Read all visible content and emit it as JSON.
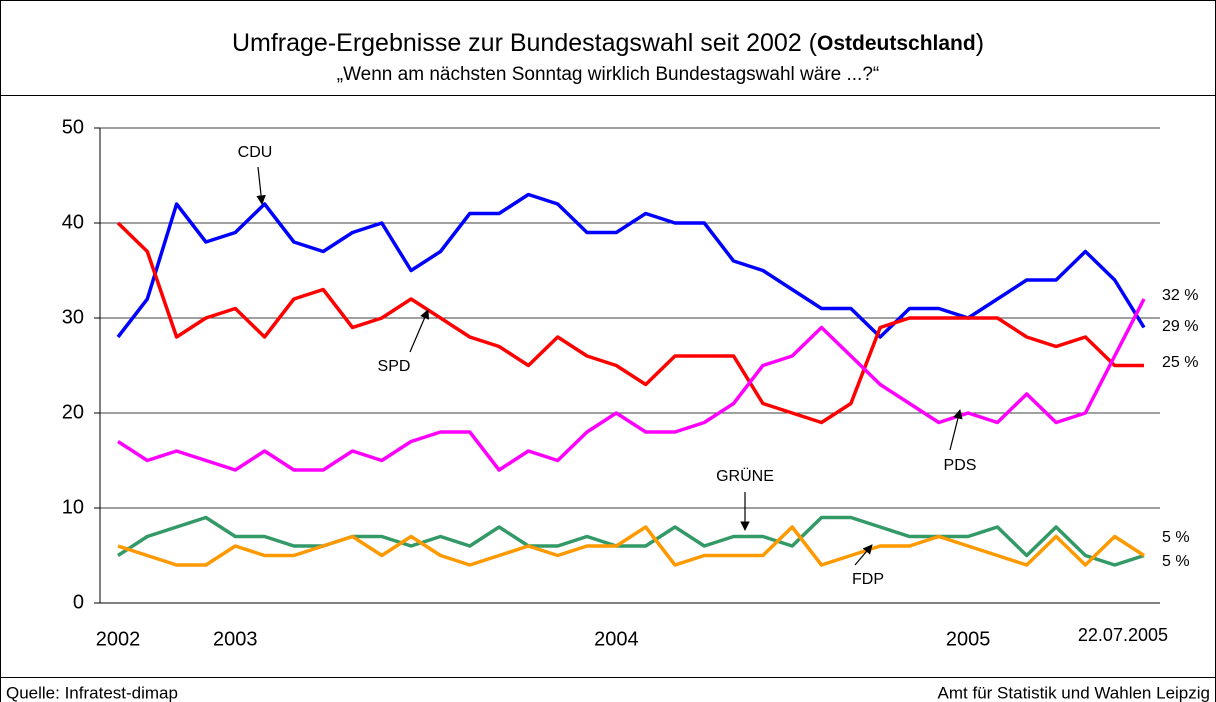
{
  "chart_data": {
    "type": "line",
    "title_parts": [
      "Umfrage-Ergebnisse zur Bundestagswahl seit 2002 (",
      "Ostdeutschland",
      ")"
    ],
    "subtitle": "„Wenn am nächsten Sonntag wirklich Bundestagswahl wäre ...?“",
    "source": "Quelle: Infratest-dimap",
    "credit": "Amt für Statistik und Wahlen Leipzig",
    "categories": [
      "2002",
      null,
      null,
      null,
      "2003",
      null,
      null,
      null,
      null,
      null,
      null,
      null,
      null,
      null,
      null,
      null,
      null,
      "2004",
      null,
      null,
      null,
      null,
      null,
      null,
      null,
      null,
      null,
      null,
      null,
      "2005",
      null,
      null,
      null,
      null,
      null,
      "22.07.2005"
    ],
    "ylim": [
      0,
      50
    ],
    "yticks": [
      0,
      10,
      20,
      30,
      40,
      50
    ],
    "grid": true,
    "series": [
      {
        "name": "CDU",
        "color": "#0000ff",
        "values": [
          28,
          32,
          42,
          38,
          39,
          42,
          38,
          37,
          39,
          40,
          35,
          37,
          41,
          41,
          43,
          42,
          39,
          39,
          41,
          40,
          40,
          36,
          35,
          33,
          31,
          31,
          28,
          31,
          31,
          30,
          32,
          34,
          34,
          37,
          34,
          29
        ],
        "value_labels": [
          null,
          null,
          null,
          null,
          null,
          null,
          null,
          null,
          null,
          null,
          null,
          null,
          null,
          null,
          null,
          null,
          null,
          null,
          null,
          null,
          null,
          null,
          null,
          null,
          null,
          null,
          null,
          null,
          null,
          null,
          null,
          null,
          null,
          null,
          null,
          "29 %"
        ]
      },
      {
        "name": "SPD",
        "color": "#ff0000",
        "values": [
          40,
          37,
          28,
          30,
          31,
          28,
          32,
          33,
          29,
          30,
          32,
          30,
          28,
          27,
          25,
          28,
          26,
          25,
          23,
          26,
          26,
          26,
          21,
          20,
          19,
          21,
          29,
          30,
          30,
          30,
          30,
          28,
          27,
          28,
          25,
          25
        ],
        "value_labels": [
          null,
          null,
          null,
          null,
          null,
          null,
          null,
          null,
          null,
          null,
          null,
          null,
          null,
          null,
          null,
          null,
          null,
          null,
          null,
          null,
          null,
          null,
          null,
          null,
          null,
          null,
          null,
          null,
          null,
          null,
          null,
          null,
          null,
          null,
          null,
          "25 %"
        ]
      },
      {
        "name": "PDS",
        "color": "#ff00ff",
        "values": [
          17,
          15,
          16,
          15,
          14,
          16,
          14,
          14,
          16,
          15,
          17,
          18,
          18,
          14,
          16,
          15,
          18,
          20,
          18,
          18,
          19,
          21,
          25,
          26,
          29,
          26,
          23,
          21,
          19,
          20,
          19,
          22,
          19,
          20,
          26,
          32
        ],
        "value_labels": [
          null,
          null,
          null,
          null,
          null,
          null,
          null,
          null,
          null,
          null,
          null,
          null,
          null,
          null,
          null,
          null,
          null,
          null,
          null,
          null,
          null,
          null,
          null,
          null,
          null,
          null,
          null,
          null,
          null,
          null,
          null,
          null,
          null,
          null,
          null,
          "32 %"
        ]
      },
      {
        "name": "GRÜNE",
        "color": "#339966",
        "values": [
          5,
          7,
          8,
          9,
          7,
          7,
          6,
          6,
          7,
          7,
          6,
          7,
          6,
          8,
          6,
          6,
          7,
          6,
          6,
          8,
          6,
          7,
          7,
          6,
          9,
          9,
          8,
          7,
          7,
          7,
          8,
          5,
          8,
          5,
          4,
          5
        ],
        "value_labels": [
          null,
          null,
          null,
          null,
          null,
          null,
          null,
          null,
          null,
          null,
          null,
          null,
          null,
          null,
          null,
          null,
          null,
          null,
          null,
          null,
          null,
          null,
          null,
          null,
          null,
          null,
          null,
          null,
          null,
          null,
          null,
          null,
          null,
          null,
          null,
          "5 %"
        ]
      },
      {
        "name": "FDP",
        "color": "#ff9900",
        "values": [
          6,
          5,
          4,
          4,
          6,
          5,
          5,
          6,
          7,
          5,
          7,
          5,
          4,
          5,
          6,
          5,
          6,
          6,
          8,
          4,
          5,
          5,
          5,
          8,
          4,
          5,
          6,
          6,
          7,
          6,
          5,
          4,
          7,
          4,
          7,
          5
        ],
        "value_labels": [
          null,
          null,
          null,
          null,
          null,
          null,
          null,
          null,
          null,
          null,
          null,
          null,
          null,
          null,
          null,
          null,
          null,
          null,
          null,
          null,
          null,
          null,
          null,
          null,
          null,
          null,
          null,
          null,
          null,
          null,
          null,
          null,
          null,
          null,
          null,
          "5 %"
        ]
      }
    ]
  }
}
